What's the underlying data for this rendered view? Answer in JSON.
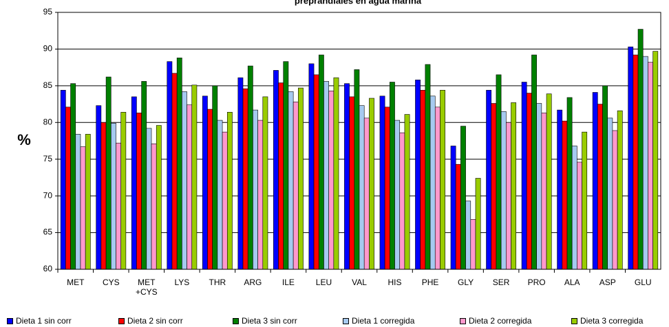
{
  "chart_data": {
    "type": "bar",
    "title": "preprandiales en agua marina",
    "y_label": "%",
    "categories": [
      "MET",
      "CYS",
      "MET +CYS",
      "LYS",
      "THR",
      "ARG",
      "ILE",
      "LEU",
      "VAL",
      "HIS",
      "PHE",
      "GLY",
      "SER",
      "PRO",
      "ALA",
      "ASP",
      "GLU"
    ],
    "series": [
      {
        "name": "Dieta 1 sin corr",
        "color": "#0000ff",
        "values": [
          84.4,
          82.3,
          83.5,
          88.3,
          83.6,
          86.1,
          87.1,
          88.0,
          85.3,
          83.6,
          85.8,
          76.8,
          84.4,
          85.5,
          81.7,
          84.1,
          90.3
        ]
      },
      {
        "name": "Dieta 2 sin corr",
        "color": "#ff0000",
        "values": [
          82.1,
          80.0,
          81.3,
          86.7,
          81.8,
          84.6,
          85.4,
          86.5,
          83.5,
          82.1,
          84.4,
          74.3,
          82.6,
          84.0,
          80.2,
          82.5,
          89.2
        ]
      },
      {
        "name": "Dieta 3 sin corr",
        "color": "#008000",
        "values": [
          85.3,
          86.2,
          85.6,
          88.8,
          85.0,
          87.7,
          88.3,
          89.2,
          87.2,
          85.5,
          87.9,
          79.5,
          86.5,
          89.2,
          83.4,
          85.0,
          92.7
        ]
      },
      {
        "name": "Dieta 1 corregida",
        "color": "#a6caf0",
        "values": [
          78.4,
          79.9,
          79.2,
          84.2,
          80.3,
          81.7,
          84.2,
          85.6,
          82.3,
          80.3,
          83.6,
          69.3,
          81.5,
          82.6,
          76.8,
          80.6,
          89.0
        ]
      },
      {
        "name": "Dieta 2 corregida",
        "color": "#ff99cc",
        "values": [
          76.7,
          77.2,
          77.1,
          82.4,
          78.7,
          80.3,
          82.8,
          84.3,
          80.6,
          78.6,
          82.1,
          66.8,
          80.0,
          81.3,
          74.6,
          78.9,
          88.2
        ]
      },
      {
        "name": "Dieta 3 corregida",
        "color": "#99cc00",
        "values": [
          78.4,
          81.4,
          79.6,
          85.1,
          81.4,
          83.5,
          84.7,
          86.1,
          83.3,
          81.1,
          84.4,
          72.4,
          82.7,
          83.9,
          78.7,
          81.6,
          89.7
        ]
      }
    ],
    "ylim": [
      60,
      95
    ],
    "yticks": [
      60,
      65,
      70,
      75,
      80,
      85,
      90,
      95
    ],
    "grid": true,
    "legend": "bottom"
  }
}
